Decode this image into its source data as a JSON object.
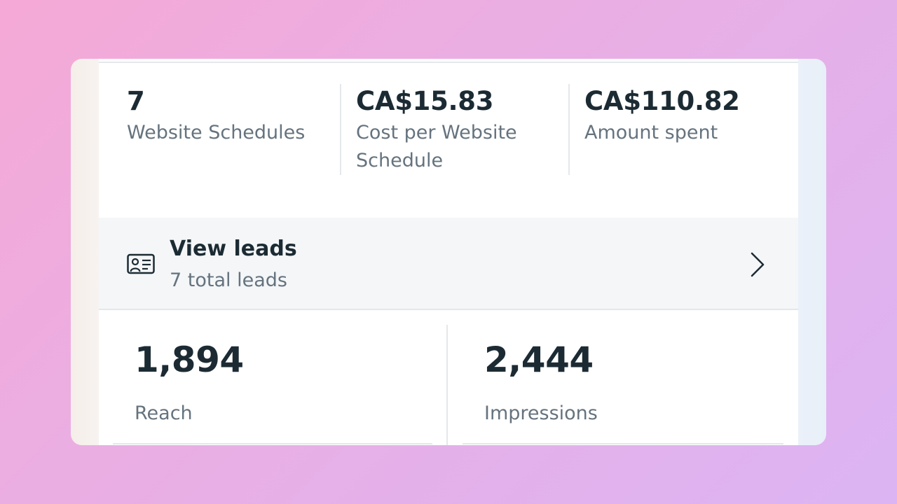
{
  "metrics": [
    {
      "value": "7",
      "label": "Website Schedules"
    },
    {
      "value": "CA$15.83",
      "label_line1": "Cost per Website",
      "label_line2": "Schedule"
    },
    {
      "value": "CA$110.82",
      "label": "Amount spent"
    }
  ],
  "leads": {
    "title": "View leads",
    "subtitle": "7 total leads",
    "icon": "contact-card-icon"
  },
  "stats": [
    {
      "value": "1,894",
      "label": "Reach"
    },
    {
      "value": "2,444",
      "label": "Impressions"
    }
  ],
  "colors": {
    "text_primary": "#1c2b33",
    "text_secondary": "#65737e",
    "row_background": "#f4f6f8",
    "divider": "#e4e8eb"
  }
}
